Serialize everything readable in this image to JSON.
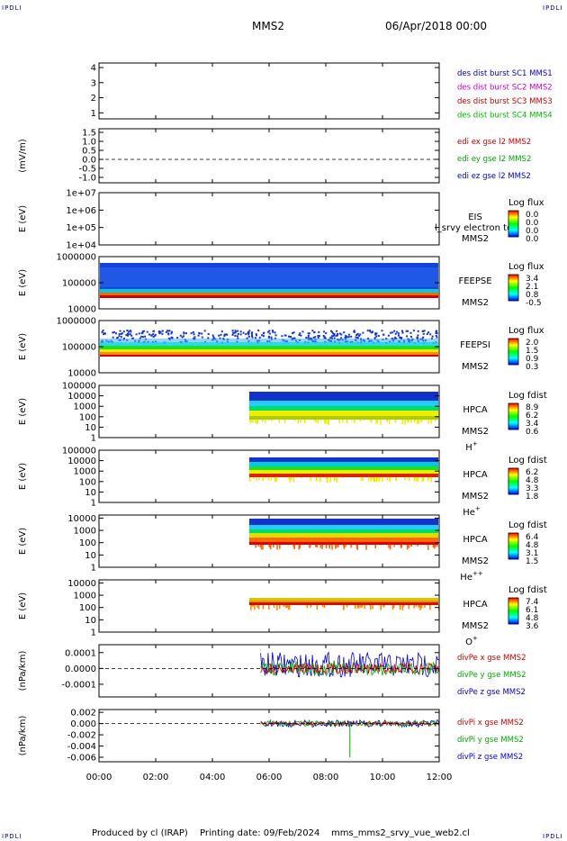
{
  "header": {
    "corner_label": "IPDLI",
    "title": "MMS2",
    "datetime": "06/Apr/2018 00:00"
  },
  "footer": {
    "produced_by": "Produced by cl (IRAP)",
    "printing_date": "Printing date: 09/Feb/2024",
    "script_name": "mms_mms2_srvy_vue_web2.cl"
  },
  "chart_data": {
    "type": "stacked-timeseries",
    "x_axis": {
      "tick_labels": [
        "00:00",
        "02:00",
        "04:00",
        "06:00",
        "08:00",
        "10:00",
        "12:00"
      ],
      "tick_hours": [
        0,
        2,
        4,
        6,
        8,
        10,
        12
      ],
      "range_hours": [
        0,
        12
      ]
    },
    "panels": [
      {
        "id": "des-dist",
        "type": "line",
        "ylabel": "",
        "ticks": [
          "4",
          "3",
          "2",
          "1"
        ],
        "tick_values": [
          4,
          3,
          2,
          1
        ],
        "ylim": [
          0.6,
          4.3
        ],
        "legend": [
          {
            "text": "des dist burst SC1 MMS1",
            "color": "#0000cc"
          },
          {
            "text": "des dist burst SC2 MMS2",
            "color": "#cc00cc"
          },
          {
            "text": "des dist burst SC3 MMS3",
            "color": "#cc0000"
          },
          {
            "text": "des dist burst SC4 MMS4",
            "color": "#00bb00"
          }
        ]
      },
      {
        "id": "edi",
        "type": "line",
        "ylabel": "(mV/m)",
        "ticks": [
          "1.5",
          "1.0",
          "0.5",
          "0.0",
          "-0.5",
          "-1.0"
        ],
        "tick_values": [
          1.5,
          1.0,
          0.5,
          0.0,
          -0.5,
          -1.0
        ],
        "ylim": [
          -1.3,
          1.7
        ],
        "zero_line": true,
        "legend": [
          {
            "text": "edi ex gse l2 MMS2",
            "color": "#cc0000"
          },
          {
            "text": "edi ey gse l2 MMS2",
            "color": "#00aa00"
          },
          {
            "text": "edi ez gse l2 MMS2",
            "color": "#0000cc"
          }
        ]
      },
      {
        "id": "eis",
        "type": "spectrogram",
        "ylabel": "E (eV)",
        "ticks": [
          "1e+07",
          "1e+06",
          "1e+05",
          "1e+04"
        ],
        "tick_values": [
          7,
          6,
          5,
          4
        ],
        "ylim": [
          4,
          7
        ],
        "label": [
          "EIS",
          "MMS2"
        ],
        "overlay_text": "l_srvy electron to",
        "colorbar": {
          "title": "Log flux",
          "ticks": [
            "0.0",
            "0.0",
            "0.0",
            "0.0"
          ]
        }
      },
      {
        "id": "feepse",
        "type": "spectrogram",
        "ylabel": "E (eV)",
        "ticks": [
          "1000000",
          "100000",
          "10000"
        ],
        "tick_values": [
          6,
          5,
          4
        ],
        "ylim": [
          4,
          6
        ],
        "label": [
          "FEEPSE",
          "MMS2"
        ],
        "colorbar": {
          "title": "Log flux",
          "ticks": [
            "3.4",
            "2.1",
            "0.8",
            "-0.5"
          ]
        }
      },
      {
        "id": "feepsi",
        "type": "spectrogram",
        "ylabel": "E (eV)",
        "ticks": [
          "1000000",
          "100000",
          "10000"
        ],
        "tick_values": [
          6,
          5,
          4
        ],
        "ylim": [
          4,
          6
        ],
        "label": [
          "FEEPSI",
          "MMS2"
        ],
        "colorbar": {
          "title": "Log flux",
          "ticks": [
            "2.0",
            "1.5",
            "0.9",
            "0.3"
          ]
        }
      },
      {
        "id": "hpca-h",
        "type": "spectrogram",
        "ylabel": "E (eV)",
        "ticks": [
          "100000",
          "10000",
          "1000",
          "100",
          "10",
          "1"
        ],
        "tick_values": [
          5,
          4,
          3,
          2,
          1,
          0
        ],
        "ylim": [
          0,
          5
        ],
        "label": [
          "HPCA",
          "MMS2",
          "H+"
        ],
        "colorbar": {
          "title": "Log fdist",
          "ticks": [
            "8.9",
            "6.2",
            "3.4",
            "0.6"
          ]
        }
      },
      {
        "id": "hpca-he",
        "type": "spectrogram",
        "ylabel": "E (eV)",
        "ticks": [
          "100000",
          "10000",
          "1000",
          "100",
          "10",
          "1"
        ],
        "tick_values": [
          5,
          4,
          3,
          2,
          1,
          0
        ],
        "ylim": [
          0,
          5
        ],
        "label": [
          "HPCA",
          "MMS2",
          "He+"
        ],
        "colorbar": {
          "title": "Log fdist",
          "ticks": [
            "6.2",
            "4.8",
            "3.3",
            "1.8"
          ]
        }
      },
      {
        "id": "hpca-hepp",
        "type": "spectrogram",
        "ylabel": "E (eV)",
        "ticks": [
          "10000",
          "1000",
          "100",
          "10",
          "1"
        ],
        "tick_values": [
          4,
          3,
          2,
          1,
          0
        ],
        "ylim": [
          0,
          4.25
        ],
        "label": [
          "HPCA",
          "MMS2",
          "He++"
        ],
        "colorbar": {
          "title": "Log fdist",
          "ticks": [
            "6.4",
            "4.8",
            "3.1",
            "1.5"
          ]
        }
      },
      {
        "id": "hpca-o",
        "type": "spectrogram",
        "ylabel": "E (eV)",
        "ticks": [
          "10000",
          "1000",
          "100",
          "10",
          "1"
        ],
        "tick_values": [
          4,
          3,
          2,
          1,
          0
        ],
        "ylim": [
          0,
          4.25
        ],
        "label": [
          "HPCA",
          "MMS2",
          "O+"
        ],
        "colorbar": {
          "title": "Log fdist",
          "ticks": [
            "7.4",
            "6.1",
            "4.8",
            "3.6"
          ]
        }
      },
      {
        "id": "divpe",
        "type": "line",
        "ylabel": "(nPa/km)",
        "ticks": [
          "0.0001",
          "0.0000",
          "-0.0001"
        ],
        "tick_values": [
          0.0001,
          0,
          -0.0001
        ],
        "ylim": [
          -0.00018,
          0.00015
        ],
        "zero_line": true,
        "legend": [
          {
            "text": "divPe x gse MMS2",
            "color": "#cc0000"
          },
          {
            "text": "divPe y gse MMS2",
            "color": "#00aa00"
          },
          {
            "text": "divPe z gse MMS2",
            "color": "#0000cc"
          }
        ]
      },
      {
        "id": "divpi",
        "type": "line",
        "ylabel": "(nPa/km)",
        "ticks": [
          "0.002",
          "0.000",
          "-0.002",
          "-0.004",
          "-0.006"
        ],
        "tick_values": [
          0.002,
          0,
          -0.002,
          -0.004,
          -0.006
        ],
        "ylim": [
          -0.0068,
          0.0025
        ],
        "zero_line": true,
        "legend": [
          {
            "text": "divPi x gse MMS2",
            "color": "#cc0000"
          },
          {
            "text": "divPi y gse MMS2",
            "color": "#00aa00"
          },
          {
            "text": "divPi z gse MMS2",
            "color": "#0000cc"
          }
        ]
      }
    ]
  }
}
